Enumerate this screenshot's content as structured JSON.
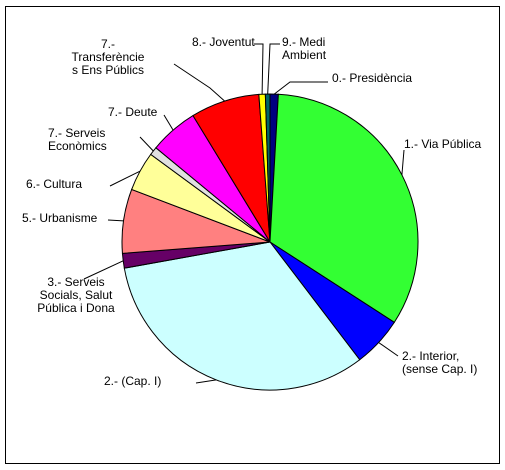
{
  "chart_data": {
    "type": "pie",
    "slices": [
      {
        "name": "0.- Presidència",
        "label_lines": [
          "0.- Presidència"
        ],
        "value": 0.9,
        "color": "#000080"
      },
      {
        "name": "1.- Via Pública",
        "label_lines": [
          "1.- Via Pública"
        ],
        "value": 33.2,
        "color": "#33ff33"
      },
      {
        "name": "2.- Interior, (sense Cap. I)",
        "label_lines": [
          "2.- Interior,",
          "(sense Cap. I)"
        ],
        "value": 5.5,
        "color": "#0000ff"
      },
      {
        "name": "2.- (Cap. I)",
        "label_lines": [
          "2.- (Cap. I)"
        ],
        "value": 32.5,
        "color": "#ccffff"
      },
      {
        "name": "3.- Serveis Socials, Salut Pública i Dona",
        "label_lines": [
          "3.- Serveis",
          "Socials, Salut",
          "Pública i Dona"
        ],
        "value": 1.6,
        "color": "#660066"
      },
      {
        "name": "5.- Urbanisme",
        "label_lines": [
          "5.- Urbanisme"
        ],
        "value": 7.0,
        "color": "#ff8080"
      },
      {
        "name": "6.- Cultura",
        "label_lines": [
          "6.- Cultura"
        ],
        "value": 4.3,
        "color": "#ffff99"
      },
      {
        "name": "7.- Serveis Econòmics",
        "label_lines": [
          "7.- Serveis",
          "Econòmics"
        ],
        "value": 0.9,
        "color": "#e0e0e0"
      },
      {
        "name": "7.- Deute",
        "label_lines": [
          "7.- Deute"
        ],
        "value": 5.3,
        "color": "#ff00ff"
      },
      {
        "name": "7.- Transferències Ens Públics",
        "label_lines": [
          "7.-",
          "Transferèncie",
          "s Ens Públics"
        ],
        "value": 7.5,
        "color": "#ff0000"
      },
      {
        "name": "8.- Joventut",
        "label_lines": [
          "8.- Joventut"
        ],
        "value": 0.7,
        "color": "#ffff00"
      },
      {
        "name": "9.- Medi Ambient",
        "label_lines": [
          "9.- Medi",
          "Ambient"
        ],
        "value": 0.5,
        "color": "#006666"
      }
    ],
    "title": "",
    "legend": "none",
    "start_angle_deg": 0,
    "direction": "clockwise"
  }
}
